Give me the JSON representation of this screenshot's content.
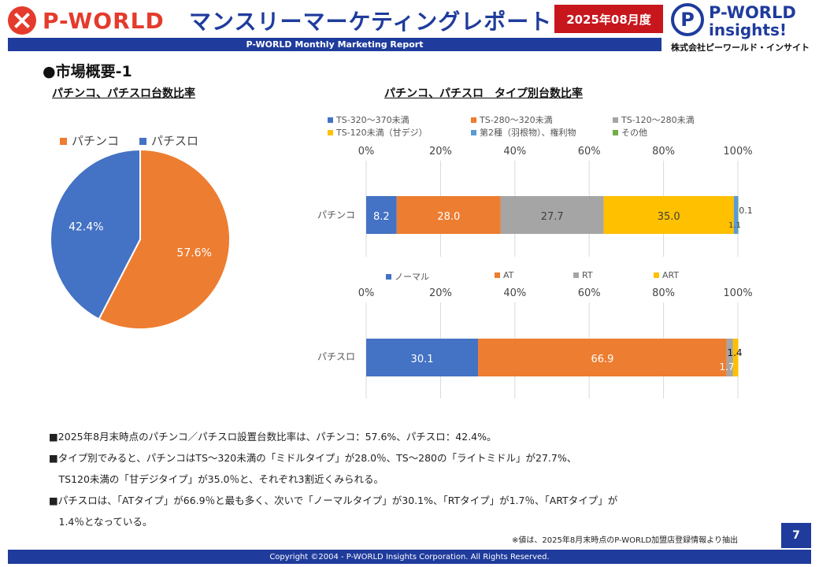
{
  "header": {
    "brand": "P-WORLD",
    "title": "マンスリーマーケティングレポート",
    "date_badge": "2025年08月度",
    "subtitle_bar": "P-WORLD Monthly Marketing Report",
    "logo_right_line1": "P-WORLD",
    "logo_right_line2": "insights!",
    "logo_right_company": "株式会社ピーワールド・インサイト",
    "logo_right_mark": "P"
  },
  "section_title": "●市場概要-1",
  "colors": {
    "brand_red": "#e43b2c",
    "navy": "#1f3b9c",
    "blue": "#4472c4",
    "orange": "#ed7d31",
    "gray": "#a5a5a5",
    "yellow": "#ffc000",
    "lightblue": "#5b9bd5",
    "green": "#70ad47"
  },
  "chart_data": [
    {
      "type": "pie",
      "title": "パチンコ、パチスロ台数比率",
      "legend": [
        "パチンコ",
        "パチスロ"
      ],
      "slices": [
        {
          "name": "パチンコ",
          "value": 57.6,
          "label": "57.6%",
          "color": "#ed7d31"
        },
        {
          "name": "パチスロ",
          "value": 42.4,
          "label": "42.4%",
          "color": "#4472c4"
        }
      ],
      "legend_position": "top"
    },
    {
      "type": "bar",
      "orientation": "horizontal-stacked-100",
      "title": "パチンコ、パチスロ　タイプ別台数比率",
      "category": "パチンコ",
      "axis_ticks": [
        "0%",
        "20%",
        "40%",
        "60%",
        "80%",
        "100%"
      ],
      "xlim": [
        0,
        100
      ],
      "series": [
        {
          "name": "TS-320～370未満",
          "value": 8.2,
          "label": "8.2",
          "color": "#4472c4"
        },
        {
          "name": "TS-280～320未満",
          "value": 28.0,
          "label": "28.0",
          "color": "#ed7d31"
        },
        {
          "name": "TS-120～280未満",
          "value": 27.7,
          "label": "27.7",
          "color": "#a5a5a5"
        },
        {
          "name": "TS-120未満（甘デジ）",
          "value": 35.0,
          "label": "35.0",
          "color": "#ffc000"
        },
        {
          "name": "第2種（羽根物）、権利物",
          "value": 1.1,
          "label": "1.1",
          "color": "#5b9bd5"
        },
        {
          "name": "その他",
          "value": 0.1,
          "label": "0.1",
          "color": "#70ad47"
        }
      ],
      "legend_position": "top"
    },
    {
      "type": "bar",
      "orientation": "horizontal-stacked-100",
      "category": "パチスロ",
      "axis_ticks": [
        "0%",
        "20%",
        "40%",
        "60%",
        "80%",
        "100%"
      ],
      "xlim": [
        0,
        100
      ],
      "series": [
        {
          "name": "ノーマル",
          "value": 30.1,
          "label": "30.1",
          "color": "#4472c4"
        },
        {
          "name": "AT",
          "value": 66.9,
          "label": "66.9",
          "color": "#ed7d31"
        },
        {
          "name": "RT",
          "value": 1.7,
          "label": "1.7",
          "color": "#a5a5a5"
        },
        {
          "name": "ART",
          "value": 1.4,
          "label": "1.4",
          "color": "#ffc000"
        }
      ],
      "legend_position": "top"
    }
  ],
  "notes": [
    "■2025年8月末時点のパチンコ／パチスロ設置台数比率は、パチンコ：57.6%、パチスロ：42.4%。",
    "■タイプ別でみると、パチンコはTS～320未満の「ミドルタイプ」が28.0％、TS～280の「ライトミドル」が27.7%、",
    "　TS120未満の「甘デジタイプ」が35.0％と、それぞれ3割近くみられる。",
    "■パチスロは、「ATタイプ」が66.9％と最も多く、次いで「ノーマルタイプ」が30.1%、「RTタイプ」が1.7％、「ARTタイプ」が",
    "　1.4％となっている。"
  ],
  "source_note": "※値は、2025年8月末時点のP-WORLD加盟店登録情報より抽出",
  "page_number": "7",
  "footer": "Copyright ©2004 - P-WORLD Insights Corporation. All Rights Reserved."
}
